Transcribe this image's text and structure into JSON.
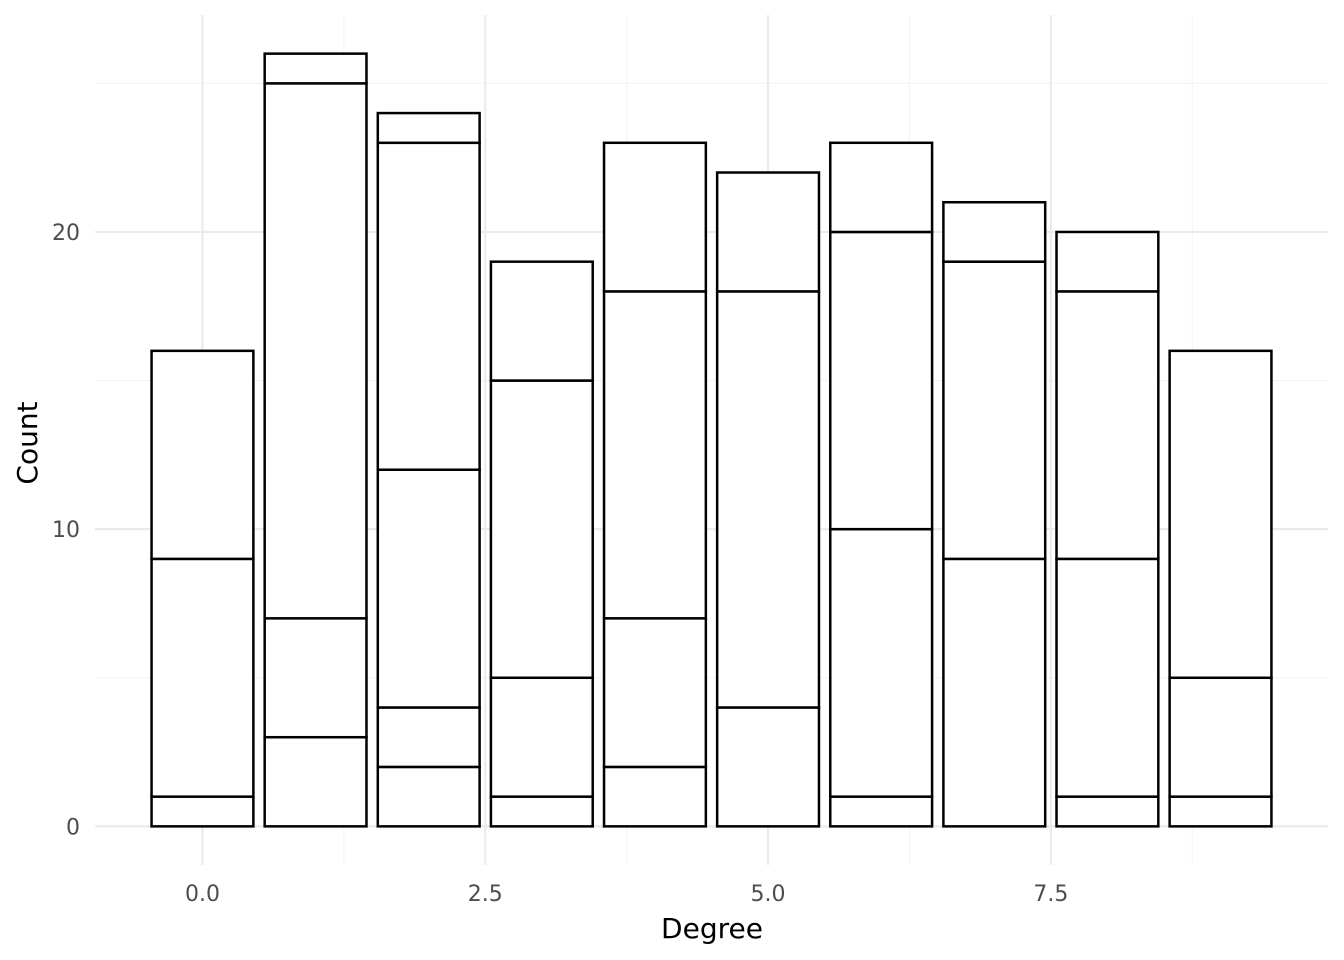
{
  "chart_data": {
    "type": "bar",
    "stacked": true,
    "xlabel": "Degree",
    "ylabel": "Count",
    "xlim": [
      -0.95,
      9.95
    ],
    "ylim": [
      -1.3,
      27.3
    ],
    "x_ticks": [
      0,
      2.5,
      5,
      7.5
    ],
    "x_tick_labels": [
      "0.0",
      "2.5",
      "5.0",
      "7.5"
    ],
    "y_ticks": [
      0,
      10,
      20
    ],
    "y_tick_labels": [
      "0",
      "10",
      "20"
    ],
    "grid": true,
    "legend": "none",
    "bar_width": 0.9,
    "colors": {
      "fill": "#ffffff",
      "outline": "#000000",
      "grid": "#ebebeb"
    },
    "bars": [
      {
        "x": 0,
        "segments": [
          1,
          8,
          7
        ],
        "total": 16
      },
      {
        "x": 1,
        "segments": [
          3,
          4,
          18,
          1
        ],
        "total": 26
      },
      {
        "x": 2,
        "segments": [
          2,
          2,
          8,
          11,
          1
        ],
        "total": 24
      },
      {
        "x": 3,
        "segments": [
          1,
          4,
          10,
          4
        ],
        "total": 19
      },
      {
        "x": 4,
        "segments": [
          2,
          5,
          11,
          5
        ],
        "total": 23
      },
      {
        "x": 5,
        "segments": [
          4,
          14,
          4
        ],
        "total": 22
      },
      {
        "x": 6,
        "segments": [
          1,
          9,
          10,
          3
        ],
        "total": 23
      },
      {
        "x": 7,
        "segments": [
          9,
          10,
          2
        ],
        "total": 21
      },
      {
        "x": 8,
        "segments": [
          1,
          8,
          9,
          2
        ],
        "total": 20
      },
      {
        "x": 9,
        "segments": [
          1,
          4,
          11
        ],
        "total": 16
      }
    ]
  }
}
